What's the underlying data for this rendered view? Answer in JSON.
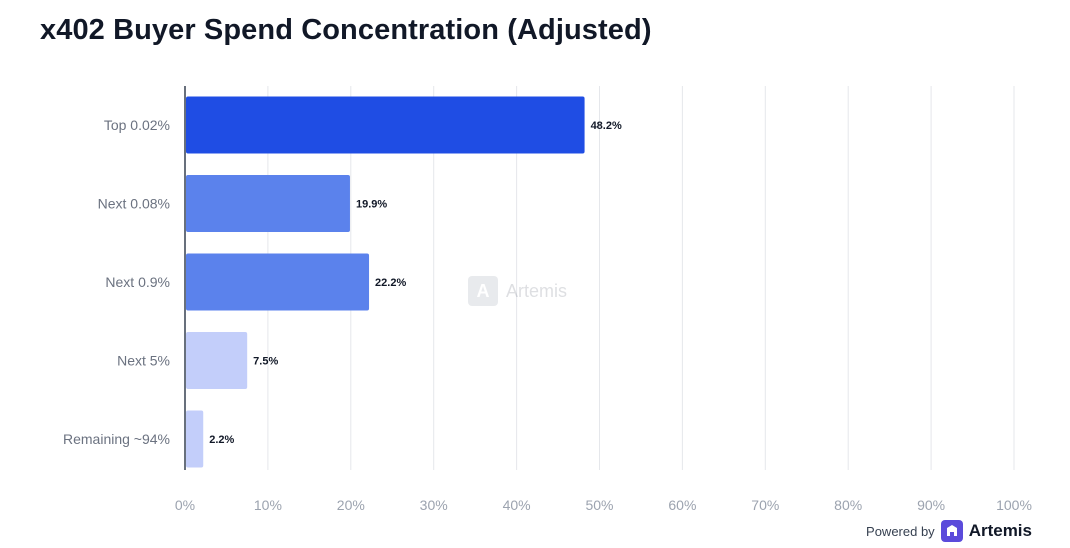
{
  "chart_data": {
    "type": "bar",
    "orientation": "horizontal",
    "title": "x402 Buyer Spend Concentration (Adjusted)",
    "categories": [
      "Top 0.02%",
      "Next 0.08%",
      "Next 0.9%",
      "Next 5%",
      "Remaining ~94%"
    ],
    "values": [
      48.2,
      19.9,
      22.2,
      7.5,
      2.2
    ],
    "value_labels": [
      "48.2%",
      "19.9%",
      "22.2%",
      "7.5%",
      "2.2%"
    ],
    "bar_colors": [
      "#1f4de4",
      "#5b82ec",
      "#5b82ec",
      "#c3cefa",
      "#c3cefa"
    ],
    "xlim": [
      0,
      100
    ],
    "xticks": [
      0,
      10,
      20,
      30,
      40,
      50,
      60,
      70,
      80,
      90,
      100
    ],
    "xtick_labels": [
      "0%",
      "10%",
      "20%",
      "30%",
      "40%",
      "50%",
      "60%",
      "70%",
      "80%",
      "90%",
      "100%"
    ],
    "grid": true,
    "legend": "none"
  },
  "watermark": {
    "text": "Artemis",
    "icon": "artemis-logo-icon"
  },
  "footer": {
    "powered_by": "Powered by",
    "brand": "Artemis",
    "brand_color": "#5b4bdb"
  }
}
